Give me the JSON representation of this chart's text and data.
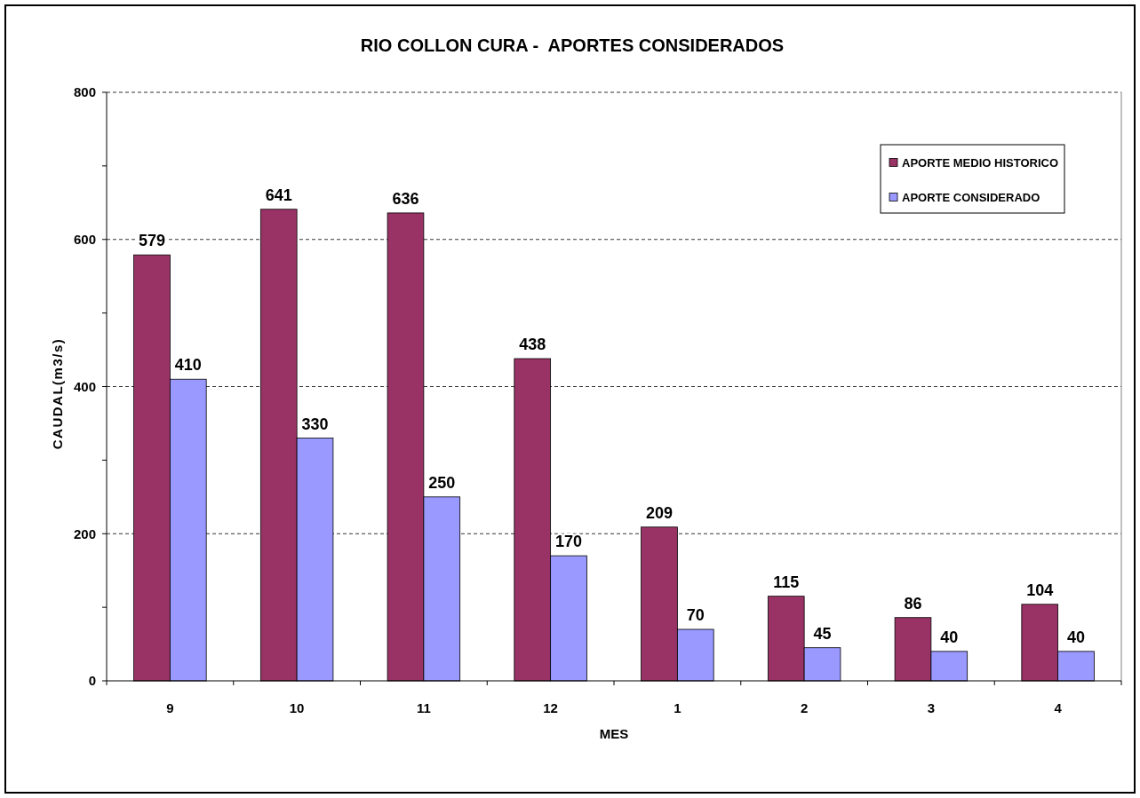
{
  "chart_data": {
    "type": "bar",
    "title": "RIO COLLON CURA -  APORTES CONSIDERADOS",
    "xlabel": "MES",
    "ylabel": "CAUDAL(m3/s)",
    "categories": [
      "9",
      "10",
      "11",
      "12",
      "1",
      "2",
      "3",
      "4"
    ],
    "series": [
      {
        "name": "APORTE MEDIO HISTORICO",
        "color": "#993366",
        "values": [
          579,
          641,
          636,
          438,
          209,
          115,
          86,
          104
        ]
      },
      {
        "name": "APORTE CONSIDERADO",
        "color": "#9999ff",
        "values": [
          410,
          330,
          250,
          170,
          70,
          45,
          40,
          40
        ]
      }
    ],
    "ylim": [
      0,
      800
    ],
    "yticks": [
      0,
      {
        "value": 100,
        "label": null
      },
      200,
      {
        "value": 300,
        "label": null
      },
      400,
      {
        "value": 500,
        "label": null
      },
      600,
      {
        "value": 700,
        "label": null
      },
      800
    ],
    "grid": "y",
    "legend": "top right",
    "data_labels": true
  }
}
